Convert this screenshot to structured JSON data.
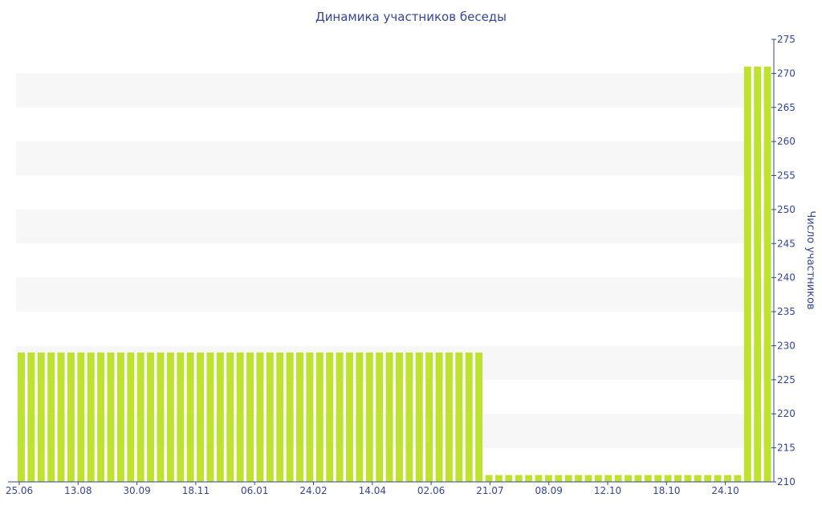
{
  "chart_data": {
    "type": "bar",
    "title": "Динамика участников беседы",
    "ylabel": "Число участников",
    "xlabel": "",
    "ylim": [
      210,
      275
    ],
    "y_ticks": [
      210,
      215,
      220,
      225,
      230,
      235,
      240,
      245,
      250,
      255,
      260,
      265,
      270,
      275
    ],
    "x_tick_labels": [
      "25.06",
      "13.08",
      "30.09",
      "18.11",
      "06.01",
      "24.02",
      "14.04",
      "02.06",
      "21.07",
      "08.09",
      "12.10",
      "18.10",
      "24.10"
    ],
    "y_axis_position": "right",
    "grid": "horizontal alternating bands",
    "bar_color": "#bfe12f",
    "axis_color": "#33479a",
    "values": [
      229,
      229,
      229,
      229,
      229,
      229,
      229,
      229,
      229,
      229,
      229,
      229,
      229,
      229,
      229,
      229,
      229,
      229,
      229,
      229,
      229,
      229,
      229,
      229,
      229,
      229,
      229,
      229,
      229,
      229,
      229,
      229,
      229,
      229,
      229,
      229,
      229,
      229,
      229,
      229,
      229,
      229,
      229,
      229,
      229,
      229,
      229,
      211,
      211,
      211,
      211,
      211,
      211,
      211,
      211,
      211,
      211,
      211,
      211,
      211,
      211,
      211,
      211,
      211,
      211,
      211,
      211,
      211,
      211,
      211,
      211,
      211,
      211,
      271,
      271,
      271
    ]
  }
}
